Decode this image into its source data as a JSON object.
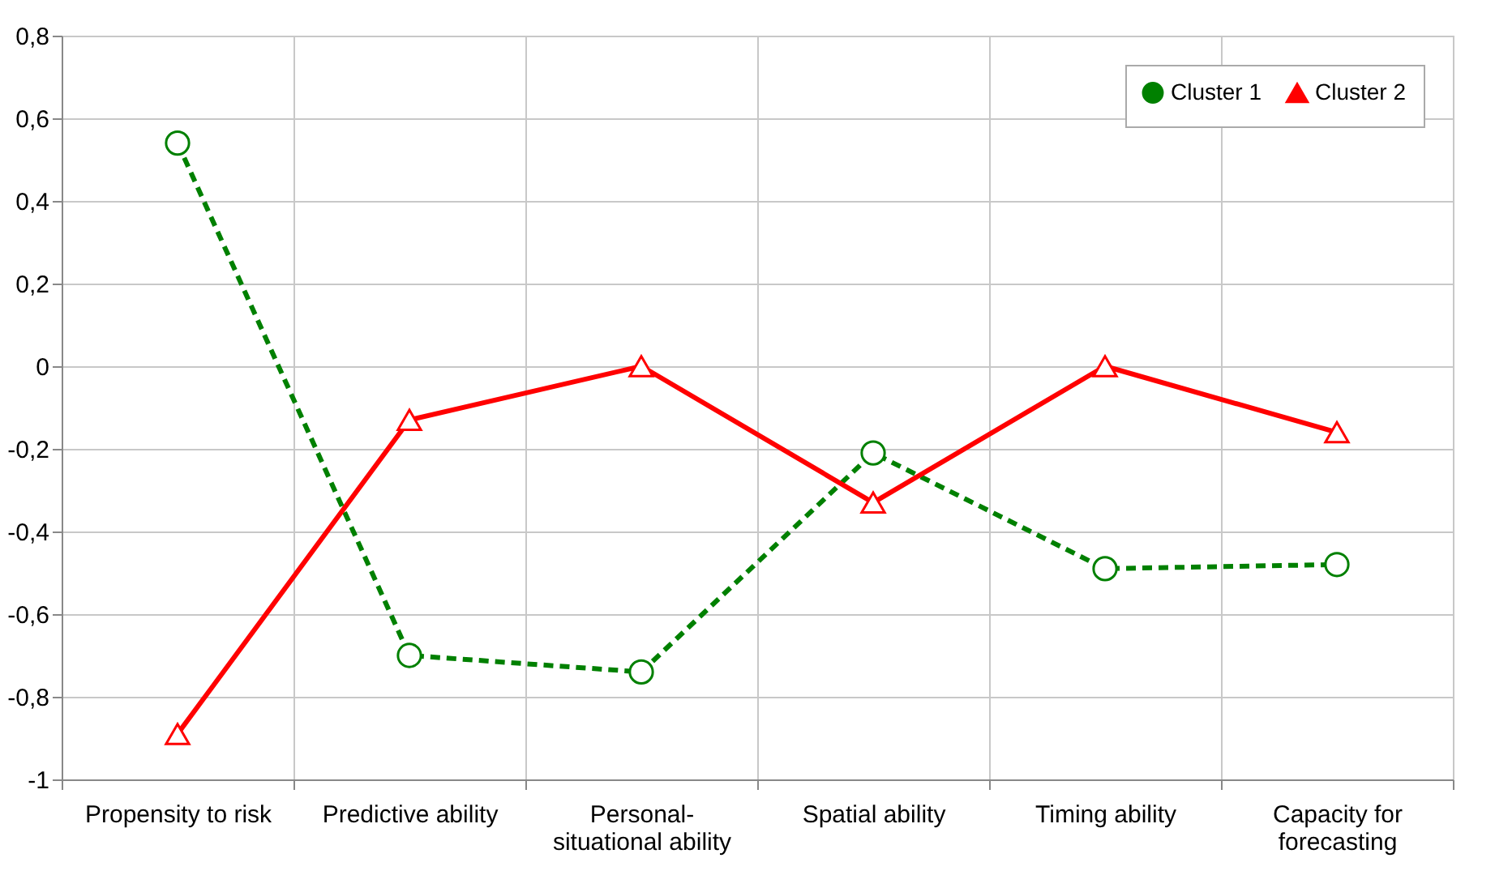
{
  "chart_data": {
    "type": "line",
    "categories": [
      "Propensity to risk",
      "Predictive ability",
      "Personal-situational ability",
      "Spatial ability",
      "Timing ability",
      "Capacity for forecasting"
    ],
    "series": [
      {
        "name": "Cluster 1",
        "color": "#008000",
        "line_style": "dashed",
        "marker": "circle",
        "values": [
          0.54,
          -0.7,
          -0.74,
          -0.21,
          -0.49,
          -0.48
        ]
      },
      {
        "name": "Cluster 2",
        "color": "#ff0000",
        "line_style": "solid",
        "marker": "triangle",
        "values": [
          -0.89,
          -0.13,
          0.0,
          -0.33,
          0.0,
          -0.16
        ]
      }
    ],
    "ylim": [
      -1,
      0.8
    ],
    "yticks": [
      {
        "value": -1,
        "label": "-1"
      },
      {
        "value": -0.8,
        "label": "-0,8"
      },
      {
        "value": -0.6,
        "label": "-0,6"
      },
      {
        "value": -0.4,
        "label": "-0,4"
      },
      {
        "value": -0.2,
        "label": "-0,2"
      },
      {
        "value": 0,
        "label": "0"
      },
      {
        "value": 0.2,
        "label": "0,2"
      },
      {
        "value": 0.4,
        "label": "0,4"
      },
      {
        "value": 0.6,
        "label": "0,6"
      },
      {
        "value": 0.8,
        "label": "0,8"
      }
    ],
    "grid": true,
    "legend": "top right"
  }
}
